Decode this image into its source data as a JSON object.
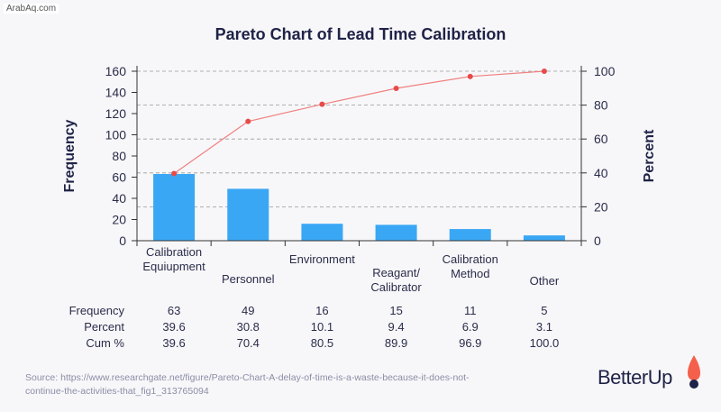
{
  "watermark": "ArabAq.com",
  "source": "Source: https://www.researchgate.net/figure/Pareto-Chart-A-delay-of-time-is-a-waste-because-it-does-not-continue-the-activities-that_fig1_313765094",
  "logo": {
    "text": "BetterUp",
    "colors": {
      "navy": "#1f2247",
      "orange": "#f4604c"
    }
  },
  "colors": {
    "bar": "#3aa7f5",
    "line": "#f08080",
    "point": "#e84a4a",
    "grid": "#9a9a9a"
  },
  "chart_data": {
    "type": "bar",
    "title": "Pareto Chart of Lead Time Calibration",
    "ylabel": "Frequency",
    "y2label": "Percent",
    "ylim": [
      0,
      160
    ],
    "y2lim": [
      0,
      100
    ],
    "yticks": [
      "0",
      "20",
      "40",
      "60",
      "80",
      "100",
      "120",
      "140",
      "160"
    ],
    "y2ticks": [
      "0",
      "20",
      "40",
      "60",
      "80",
      "100"
    ],
    "categories": [
      [
        "Calibration",
        "Equiupment"
      ],
      [
        "Personnel"
      ],
      [
        "Environment"
      ],
      [
        "Reagant/",
        "Calibrator"
      ],
      [
        "Calibration",
        "Method"
      ],
      [
        "Other"
      ]
    ],
    "series": [
      {
        "name": "Frequency",
        "values": [
          63,
          49,
          16,
          15,
          11,
          5
        ]
      },
      {
        "name": "Cum %",
        "values": [
          39.6,
          70.4,
          80.5,
          89.9,
          96.9,
          100.0
        ]
      }
    ],
    "table": {
      "rows": [
        {
          "label": "Frequency",
          "values": [
            "63",
            "49",
            "16",
            "15",
            "11",
            "5"
          ]
        },
        {
          "label": "Percent",
          "values": [
            "39.6",
            "30.8",
            "10.1",
            "9.4",
            "6.9",
            "3.1"
          ]
        },
        {
          "label": "Cum %",
          "values": [
            "39.6",
            "70.4",
            "80.5",
            "89.9",
            "96.9",
            "100.0"
          ]
        }
      ]
    },
    "grid": "dashed horizontal at right-axis ticks"
  }
}
